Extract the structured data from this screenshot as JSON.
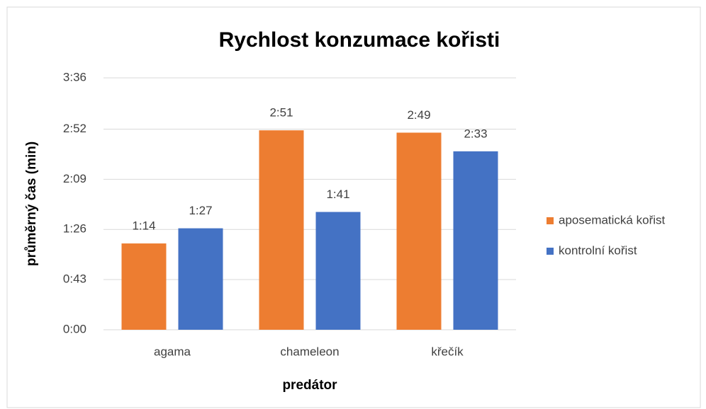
{
  "chart_data": {
    "type": "bar",
    "title": "Rychlost konzumace kořisti",
    "xlabel": "predátor",
    "ylabel": "průměrný čas (min)",
    "categories": [
      "agama",
      "chameleon",
      "křečík"
    ],
    "series": [
      {
        "name": "aposematická kořist",
        "color": "#ed7d31",
        "values": [
          74,
          171,
          169
        ],
        "value_labels": [
          "1:14",
          "2:51",
          "2:49"
        ]
      },
      {
        "name": "kontrolní kořist",
        "color": "#4472c4",
        "values": [
          87,
          101,
          153
        ],
        "value_labels": [
          "1:27",
          "1:41",
          "2:33"
        ]
      }
    ],
    "ylim": [
      0,
      216
    ],
    "yticks": [
      {
        "value": 0,
        "label": "0:00"
      },
      {
        "value": 43,
        "label": "0:43"
      },
      {
        "value": 86,
        "label": "1:26"
      },
      {
        "value": 129,
        "label": "2:09"
      },
      {
        "value": 172,
        "label": "2:52"
      },
      {
        "value": 216,
        "label": "3:36"
      }
    ],
    "grid": true,
    "legend": "right"
  }
}
